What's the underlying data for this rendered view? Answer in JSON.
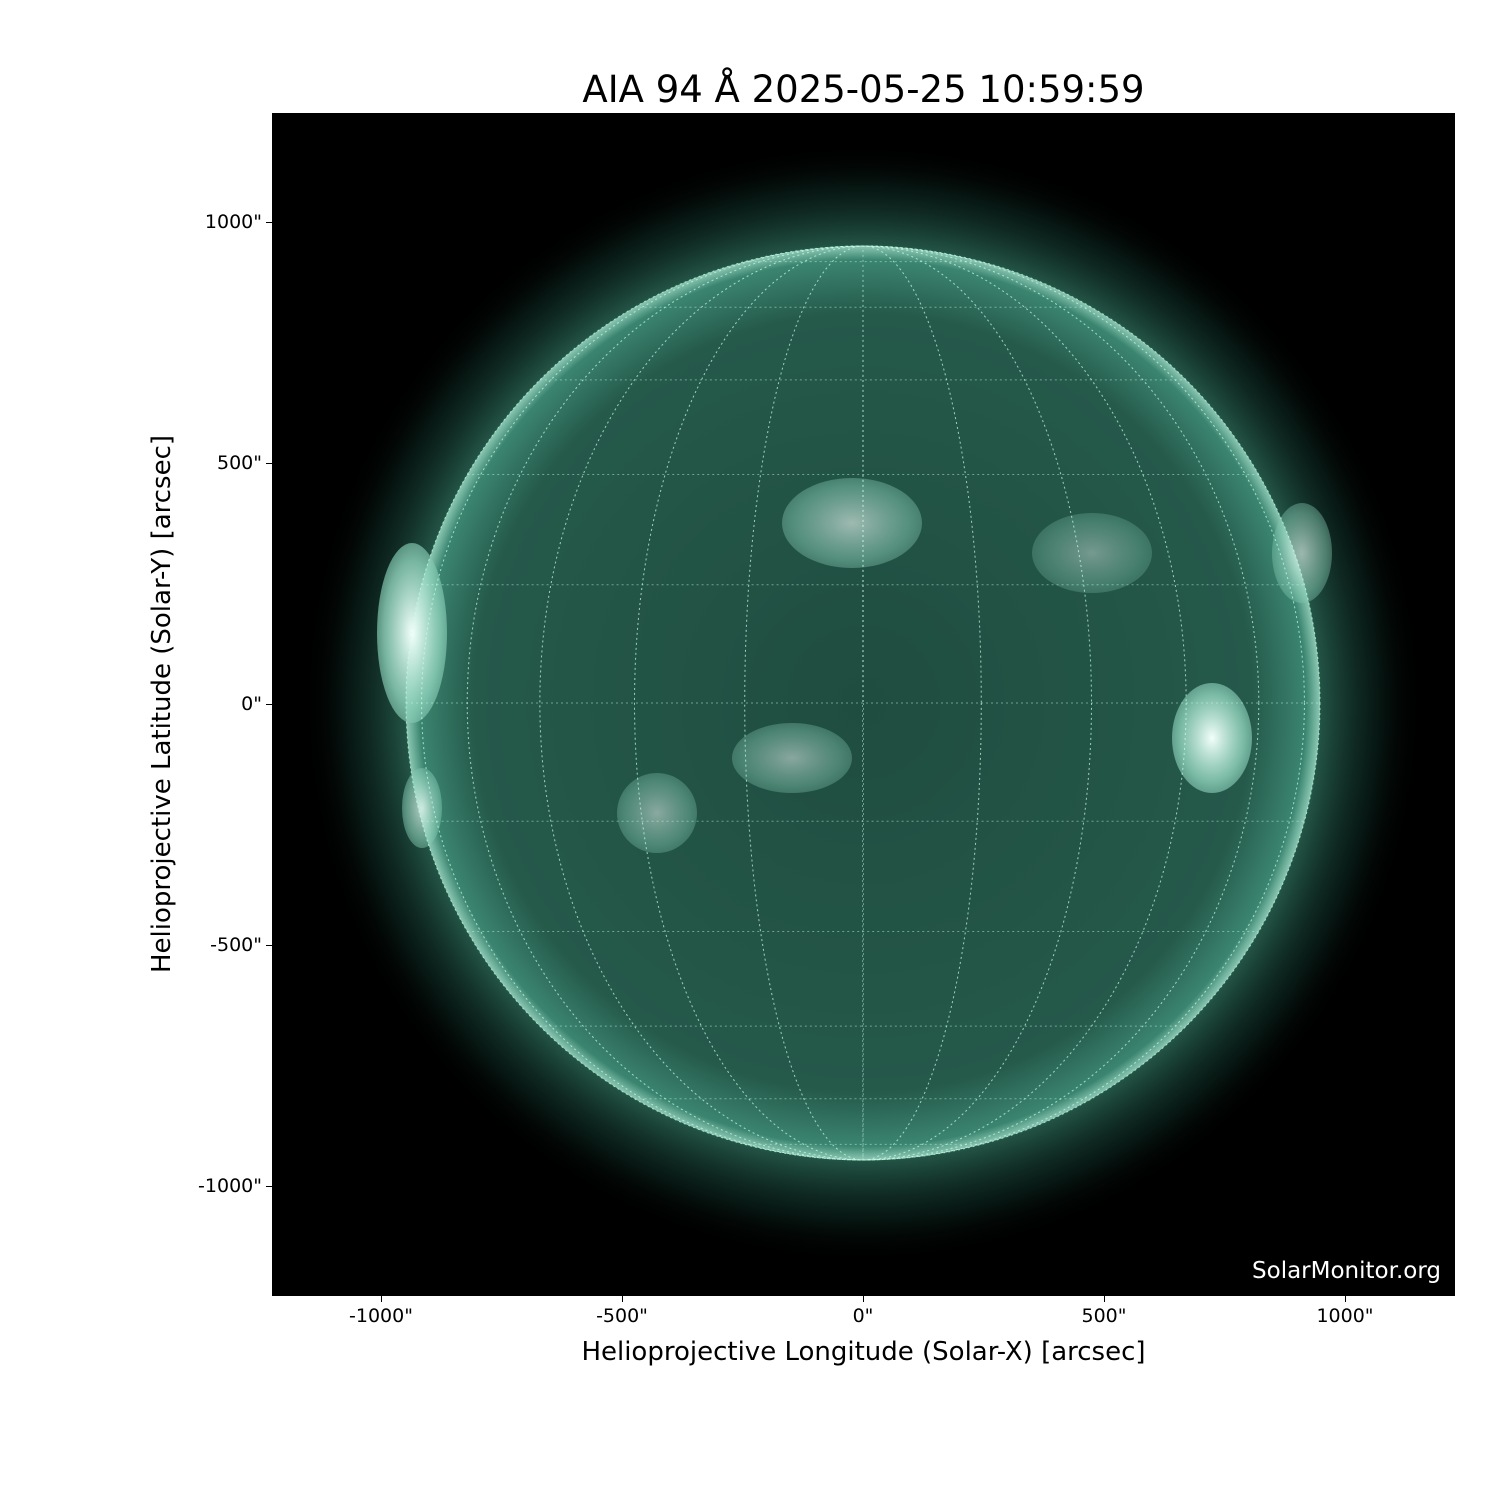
{
  "title": "AIA 94 Å 2025-05-25 10:59:59",
  "xlabel": "Helioprojective Longitude (Solar-X) [arcsec]",
  "ylabel": "Helioprojective Latitude (Solar-Y) [arcsec]",
  "x_ticks": [
    "-1000\"",
    "-500\"",
    "0\"",
    "500\"",
    "1000\""
  ],
  "y_ticks": [
    "1000\"",
    "500\"",
    "0\"",
    "-500\"",
    "-1000\""
  ],
  "tick_values": [
    -1000,
    -500,
    0,
    500,
    1000
  ],
  "watermark": "SolarMonitor.org",
  "colors": {
    "disk": "#2c6b58",
    "limb": "#a8e0cc",
    "background": "#000000"
  },
  "axis_range_arcsec": [
    -1228,
    1228
  ]
}
